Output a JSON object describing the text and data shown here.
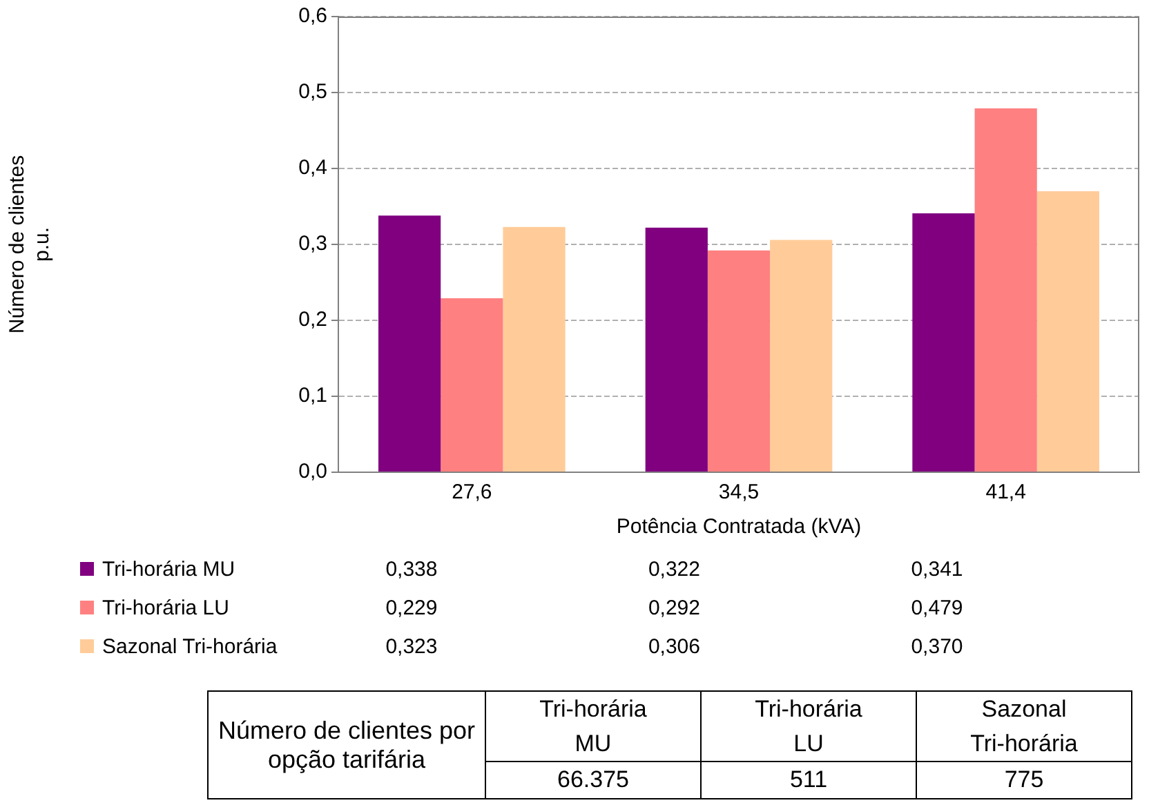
{
  "chart_data": [
    {
      "type": "bar",
      "xlabel": "Potência Contratada (kVA)",
      "ylabel": "Número de clientes\np.u.",
      "categories": [
        "27,6",
        "34,5",
        "41,4"
      ],
      "series": [
        {
          "name": "Tri-horária MU",
          "color": "#800080",
          "values": [
            0.338,
            0.322,
            0.341
          ],
          "value_labels": [
            "0,338",
            "0,322",
            "0,341"
          ]
        },
        {
          "name": "Tri-horária LU",
          "color": "#ff8080",
          "values": [
            0.229,
            0.292,
            0.479
          ],
          "value_labels": [
            "0,229",
            "0,292",
            "0,479"
          ]
        },
        {
          "name": "Sazonal Tri-horária",
          "color": "#ffcc99",
          "values": [
            0.323,
            0.306,
            0.37
          ],
          "value_labels": [
            "0,323",
            "0,306",
            "0,370"
          ]
        }
      ],
      "ylim": [
        0,
        0.6
      ],
      "yticks": [
        {
          "value": 0,
          "label": "0,0"
        },
        {
          "value": 0.1,
          "label": "0,1"
        },
        {
          "value": 0.2,
          "label": "0,2"
        },
        {
          "value": 0.3,
          "label": "0,3"
        },
        {
          "value": 0.4,
          "label": "0,4"
        },
        {
          "value": 0.5,
          "label": "0,5"
        },
        {
          "value": 0.6,
          "label": "0,6"
        }
      ],
      "grid": "y",
      "legend": "bottom"
    },
    {
      "type": "other",
      "title": "Número de clientes por opção tarifária",
      "categories": [
        "Tri-horária MU",
        "Tri-horária LU",
        "Sazonal Tri-horária"
      ],
      "value_labels": [
        "66.375",
        "511",
        "775"
      ]
    }
  ]
}
